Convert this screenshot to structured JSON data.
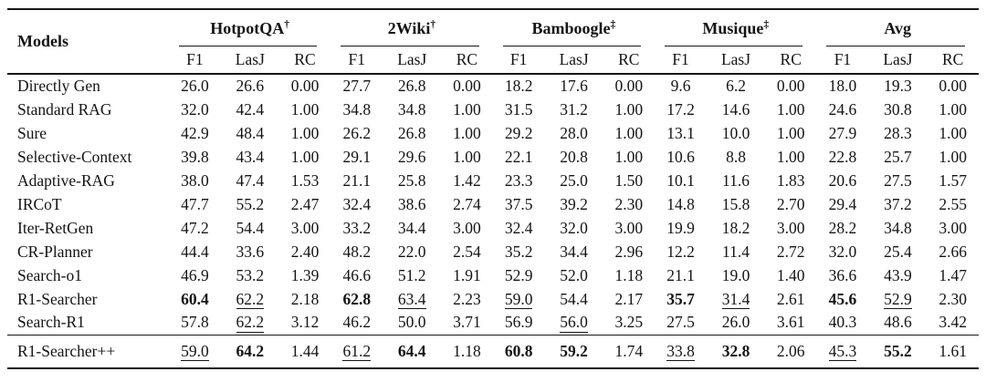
{
  "table": {
    "corner_label": "Models",
    "subcolumns": [
      "F1",
      "LasJ",
      "RC"
    ],
    "groups": [
      {
        "label": "HotpotQA",
        "marker": "†"
      },
      {
        "label": "2Wiki",
        "marker": "†"
      },
      {
        "label": "Bamboogle",
        "marker": "‡"
      },
      {
        "label": "Musique",
        "marker": "‡"
      },
      {
        "label": "Avg",
        "marker": ""
      }
    ],
    "rows": [
      {
        "model": "Directly Gen",
        "values": [
          "26.0",
          "26.6",
          "0.00",
          "27.7",
          "26.8",
          "0.00",
          "18.2",
          "17.6",
          "0.00",
          "9.6",
          "6.2",
          "0.00",
          "18.0",
          "19.3",
          "0.00"
        ]
      },
      {
        "model": "Standard RAG",
        "values": [
          "32.0",
          "42.4",
          "1.00",
          "34.8",
          "34.8",
          "1.00",
          "31.5",
          "31.2",
          "1.00",
          "17.2",
          "14.6",
          "1.00",
          "24.6",
          "30.8",
          "1.00"
        ]
      },
      {
        "model": "Sure",
        "values": [
          "42.9",
          "48.4",
          "1.00",
          "26.2",
          "26.8",
          "1.00",
          "29.2",
          "28.0",
          "1.00",
          "13.1",
          "10.0",
          "1.00",
          "27.9",
          "28.3",
          "1.00"
        ]
      },
      {
        "model": "Selective-Context",
        "values": [
          "39.8",
          "43.4",
          "1.00",
          "29.1",
          "29.6",
          "1.00",
          "22.1",
          "20.8",
          "1.00",
          "10.6",
          "8.8",
          "1.00",
          "22.8",
          "25.7",
          "1.00"
        ]
      },
      {
        "model": "Adaptive-RAG",
        "values": [
          "38.0",
          "47.4",
          "1.53",
          "21.1",
          "25.8",
          "1.42",
          "23.3",
          "25.0",
          "1.50",
          "10.1",
          "11.6",
          "1.83",
          "20.6",
          "27.5",
          "1.57"
        ]
      },
      {
        "model": "IRCoT",
        "values": [
          "47.7",
          "55.2",
          "2.47",
          "32.4",
          "38.6",
          "2.74",
          "37.5",
          "39.2",
          "2.30",
          "14.8",
          "15.8",
          "2.70",
          "29.4",
          "37.2",
          "2.55"
        ]
      },
      {
        "model": "Iter-RetGen",
        "values": [
          "47.2",
          "54.4",
          "3.00",
          "33.2",
          "34.4",
          "3.00",
          "32.4",
          "32.0",
          "3.00",
          "19.9",
          "18.2",
          "3.00",
          "28.2",
          "34.8",
          "3.00"
        ]
      },
      {
        "model": "CR-Planner",
        "values": [
          "44.4",
          "33.6",
          "2.40",
          "48.2",
          "22.0",
          "2.54",
          "35.2",
          "34.4",
          "2.96",
          "12.2",
          "11.4",
          "2.72",
          "32.0",
          "25.4",
          "2.66"
        ]
      },
      {
        "model": "Search-o1",
        "values": [
          "46.9",
          "53.2",
          "1.39",
          "46.6",
          "51.2",
          "1.91",
          "52.9",
          "52.0",
          "1.18",
          "21.1",
          "19.0",
          "1.40",
          "36.6",
          "43.9",
          "1.47"
        ]
      },
      {
        "model": "R1-Searcher",
        "values": [
          "60.4",
          "62.2",
          "2.18",
          "62.8",
          "63.4",
          "2.23",
          "59.0",
          "54.4",
          "2.17",
          "35.7",
          "31.4",
          "2.61",
          "45.6",
          "52.9",
          "2.30"
        ],
        "styles": [
          "b",
          "u",
          "",
          "b",
          "u",
          "",
          "u",
          "",
          "",
          "b",
          "u",
          "",
          "b",
          "u",
          ""
        ]
      },
      {
        "model": "Search-R1",
        "values": [
          "57.8",
          "62.2",
          "3.12",
          "46.2",
          "50.0",
          "3.71",
          "56.9",
          "56.0",
          "3.25",
          "27.5",
          "26.0",
          "3.61",
          "40.3",
          "48.6",
          "3.42"
        ],
        "styles": [
          "",
          "u",
          "",
          "",
          "",
          "",
          "",
          "u",
          "",
          "",
          "",
          "",
          "",
          "",
          ""
        ]
      }
    ],
    "final_row": {
      "model": "R1-Searcher++",
      "values": [
        "59.0",
        "64.2",
        "1.44",
        "61.2",
        "64.4",
        "1.18",
        "60.8",
        "59.2",
        "1.74",
        "33.8",
        "32.8",
        "2.06",
        "45.3",
        "55.2",
        "1.61"
      ],
      "styles": [
        "u",
        "b",
        "",
        "u",
        "b",
        "",
        "b",
        "b",
        "",
        "u",
        "b",
        "",
        "u",
        "b",
        ""
      ]
    }
  },
  "colors": {
    "background": "#ffffff",
    "text": "#141414",
    "rule": "#161616"
  }
}
